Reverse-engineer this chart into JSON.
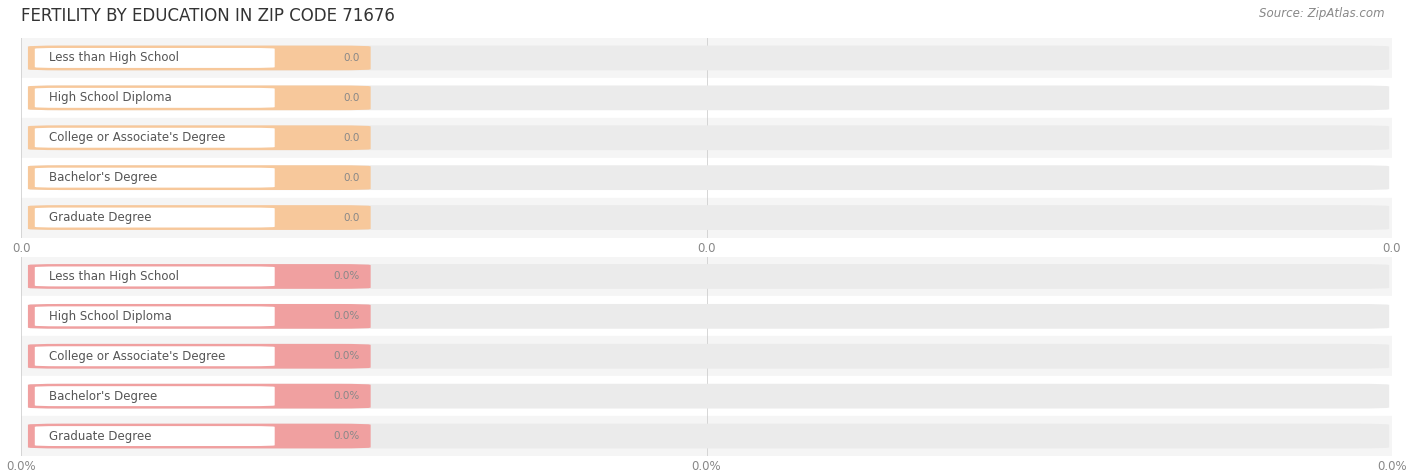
{
  "title": "FERTILITY BY EDUCATION IN ZIP CODE 71676",
  "source_text": "Source: ZipAtlas.com",
  "categories": [
    "Less than High School",
    "High School Diploma",
    "College or Associate's Degree",
    "Bachelor's Degree",
    "Graduate Degree"
  ],
  "group1_values": [
    0.0,
    0.0,
    0.0,
    0.0,
    0.0
  ],
  "group2_values": [
    0.0,
    0.0,
    0.0,
    0.0,
    0.0
  ],
  "group1_bar_color": "#F7C89B",
  "group2_bar_color": "#F0A0A0",
  "bar_bg_color": "#EBEBEB",
  "row_alt_color": "#F5F5F5",
  "group1_value_label": "0.0",
  "group2_value_label": "0.0%",
  "group1_xtick_labels": [
    "0.0",
    "0.0",
    "0.0"
  ],
  "group2_xtick_labels": [
    "0.0%",
    "0.0%",
    "0.0%"
  ],
  "title_fontsize": 12,
  "label_fontsize": 8.5,
  "value_fontsize": 7.5,
  "tick_fontsize": 8.5,
  "source_fontsize": 8.5,
  "fig_width": 14.06,
  "fig_height": 4.75,
  "background_color": "#FFFFFF",
  "title_color": "#333333",
  "label_text_color": "#555555",
  "value_text_color": "#888888",
  "source_color": "#888888",
  "grid_color": "#CCCCCC"
}
